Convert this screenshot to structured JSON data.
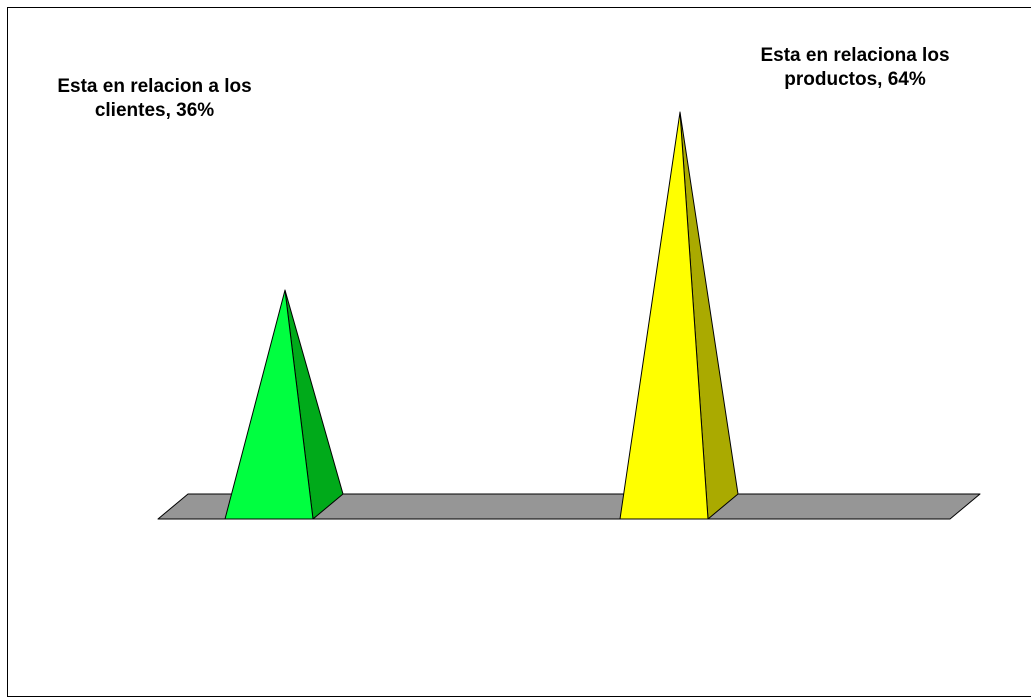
{
  "chart_data": {
    "type": "bar",
    "style": "3d-pyramid",
    "categories": [
      "Esta en relacion a los clientes",
      "Esta en relaciona los productos"
    ],
    "values": [
      36,
      64
    ],
    "unit": "%",
    "data_labels": [
      "Esta en relacion a los clientes, 36%",
      "Esta en relaciona los productos, 64%"
    ],
    "title": "",
    "xlabel": "",
    "ylabel": "",
    "ylim": [
      0,
      70
    ],
    "grid": false,
    "legend": "none",
    "colors": {
      "pyramid_front": [
        "#00ff40",
        "#ffff00"
      ],
      "pyramid_side": [
        "#00aa1a",
        "#aaaa00"
      ],
      "floor": "#969696"
    }
  }
}
